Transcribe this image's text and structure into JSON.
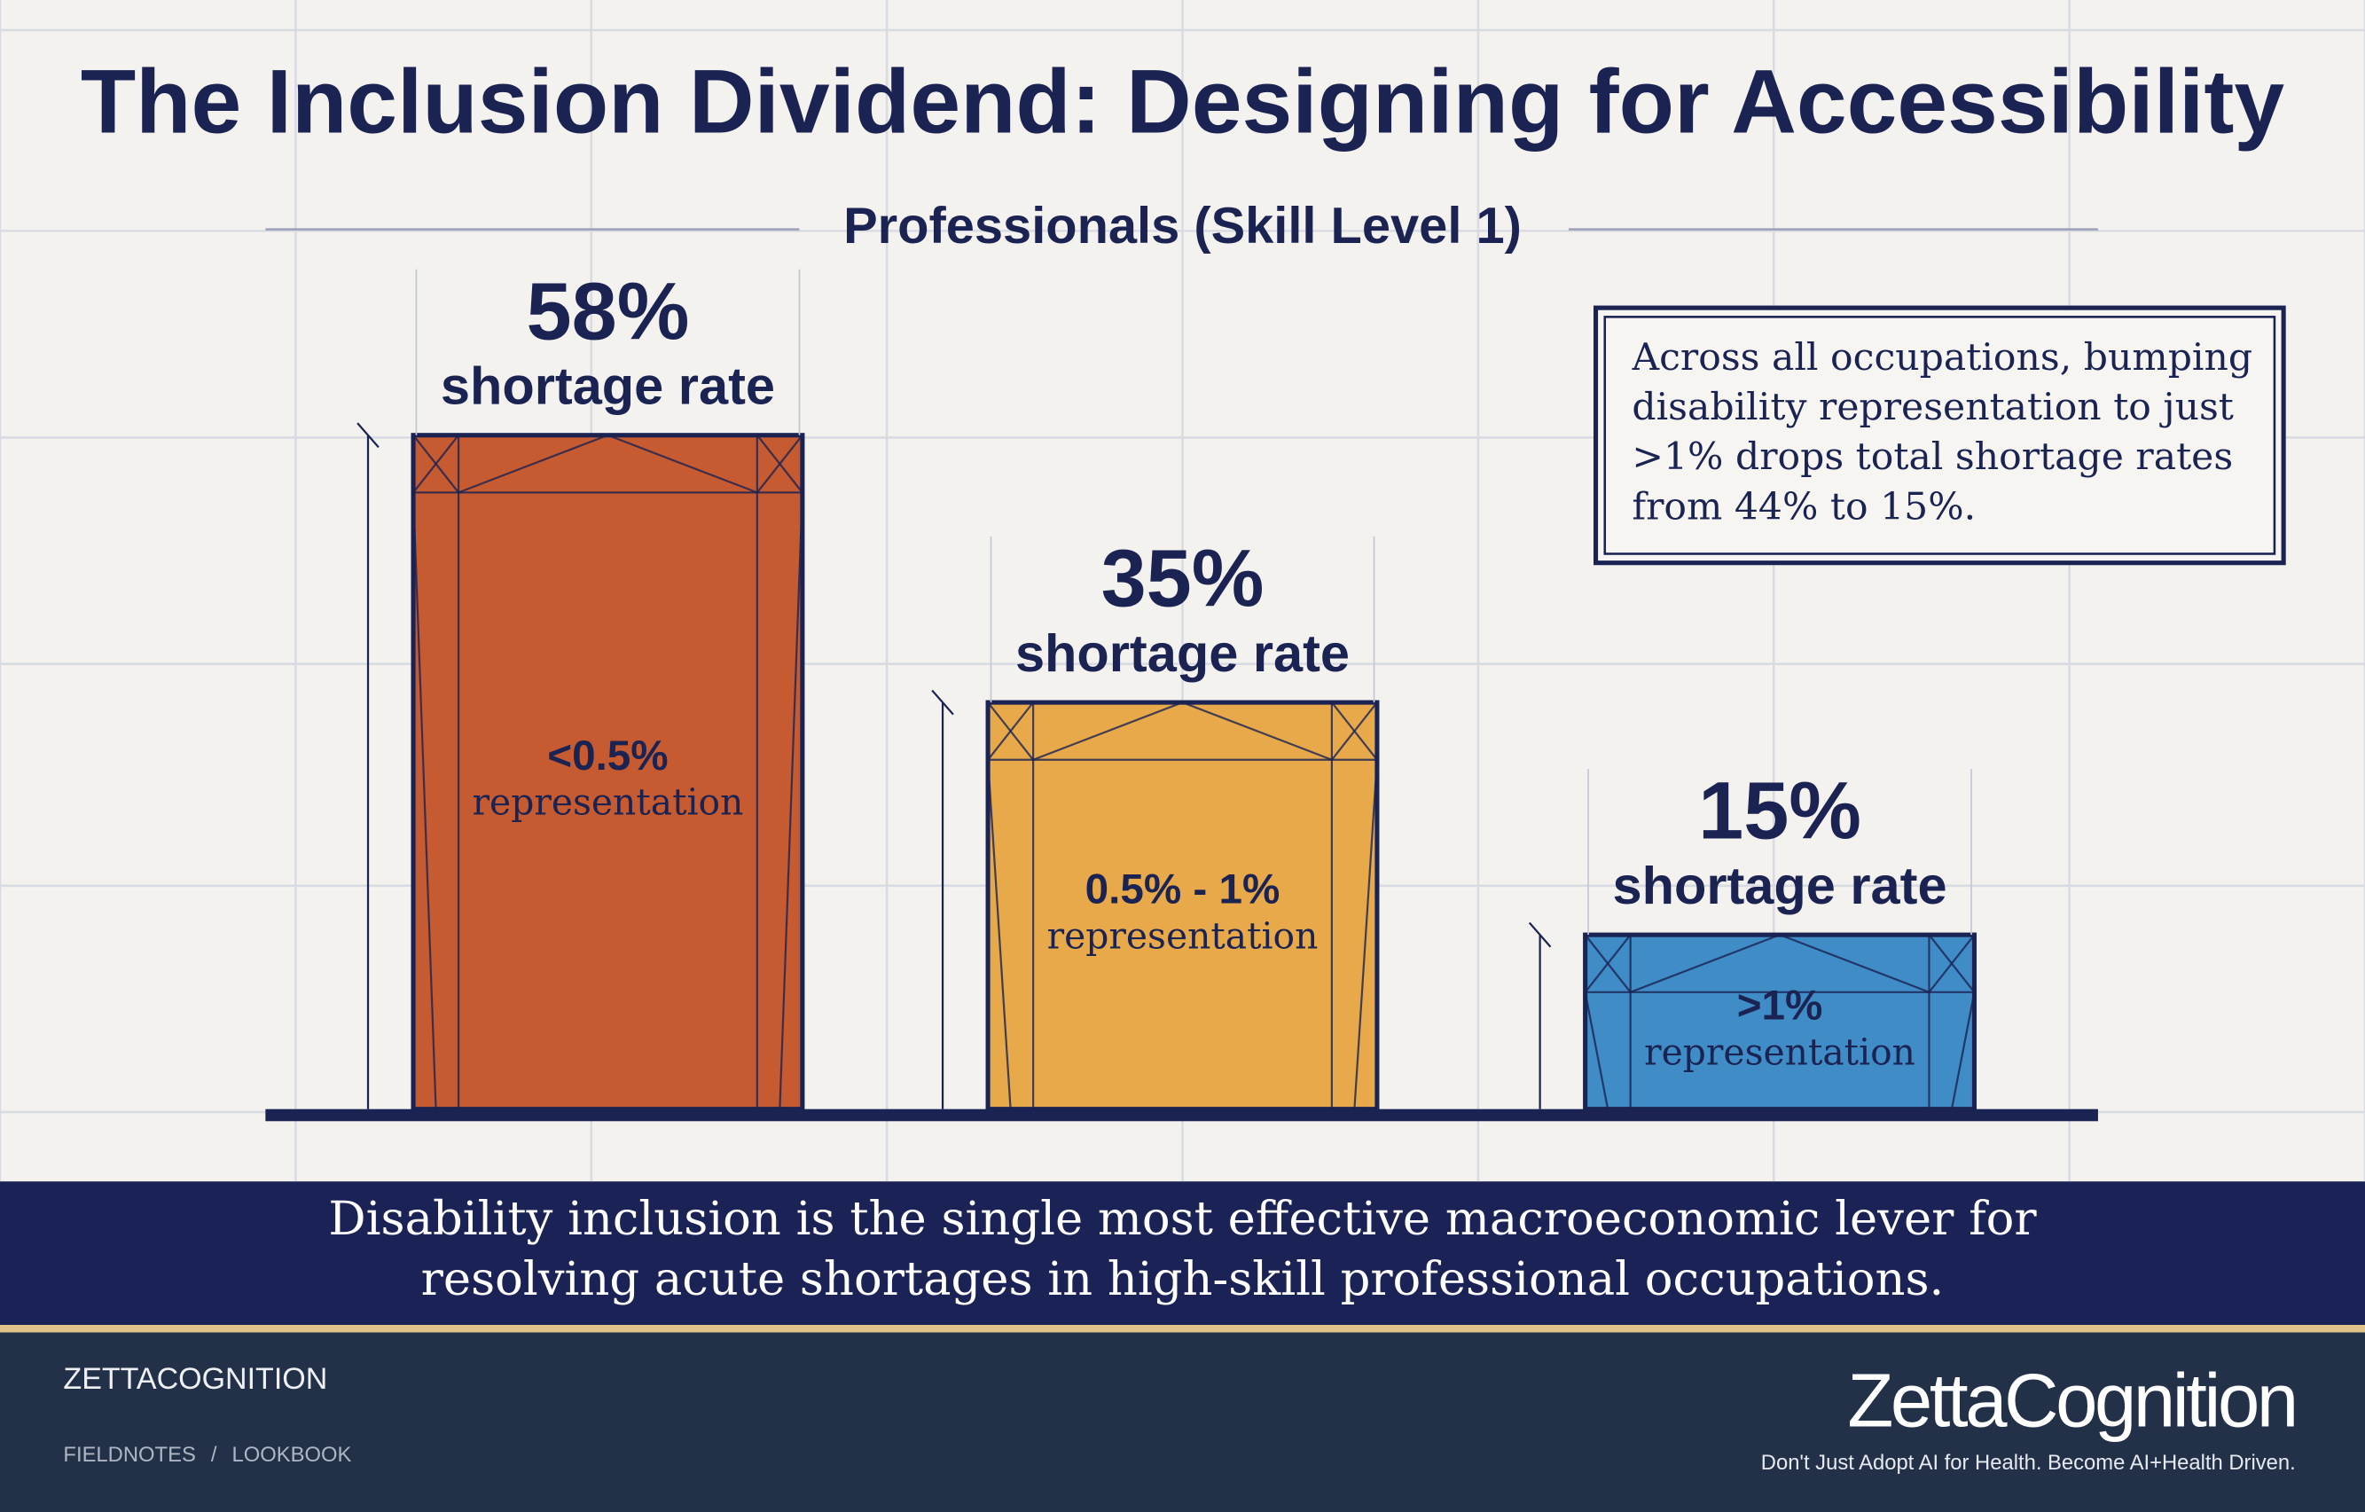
{
  "chart_data": {
    "type": "bar",
    "title": "The Inclusion Dividend: Designing for Accessibility",
    "subtitle": "Professionals (Skill Level 1)",
    "categories": [
      "<0.5%",
      "0.5% - 1%",
      ">1%"
    ],
    "category_captions": [
      "representation",
      "representation",
      "representation"
    ],
    "values": [
      58,
      35,
      15
    ],
    "value_labels": [
      "58%",
      "35%",
      "15%"
    ],
    "value_captions": [
      "shortage rate",
      "shortage rate",
      "shortage rate"
    ],
    "colors": [
      "#c65a30",
      "#e8a94b",
      "#3f8cc6"
    ],
    "annotation": "Across all occupations, bumping disability representation to just >1% drops total shortage rates from 44% to 15%.",
    "conclusion": "Disability inclusion is the single most effective macroeconomic lever for resolving acute shortages in high-skill professional occupations."
  },
  "footer": {
    "brand": "ZETTACOGNITION",
    "breadcrumb": [
      "FIELDNOTES",
      "/",
      "LOOKBOOK"
    ],
    "logo": "ZettaCognition",
    "tagline": "Don't Just Adopt AI for Health. Become AI+Health Driven."
  }
}
